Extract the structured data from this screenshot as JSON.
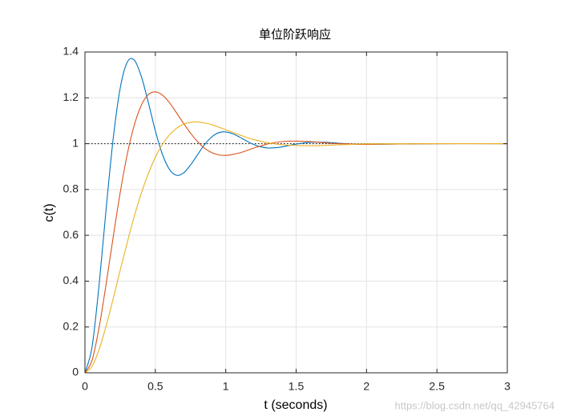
{
  "chart_data": {
    "type": "line",
    "title": "单位阶跃响应",
    "x_label": "t (seconds)",
    "y_label": "c(t)",
    "x": [
      0,
      0.05,
      0.1,
      0.15,
      0.2,
      0.25,
      0.3,
      0.35,
      0.4,
      0.45,
      0.5,
      0.55,
      0.6,
      0.65,
      0.7,
      0.75,
      0.8,
      0.85,
      0.9,
      0.95,
      1.0,
      1.05,
      1.1,
      1.15,
      1.2,
      1.25,
      1.3,
      1.35,
      1.4,
      1.45,
      1.5,
      1.6,
      1.7,
      1.8,
      1.9,
      2.0,
      2.5,
      3.0
    ],
    "series": [
      {
        "color": "#0072bd",
        "values": [
          0,
          0.111,
          0.381,
          0.712,
          1.019,
          1.241,
          1.355,
          1.365,
          1.294,
          1.18,
          1.056,
          0.954,
          0.888,
          0.862,
          0.872,
          0.907,
          0.952,
          0.996,
          1.029,
          1.048,
          1.051,
          1.043,
          1.028,
          1.011,
          0.996,
          0.986,
          0.981,
          0.982,
          0.986,
          0.992,
          0.998,
          1.006,
          1.006,
          1.002,
          0.998,
          0.997,
          1.0,
          1.0
        ]
      },
      {
        "color": "#d95319",
        "values": [
          0,
          0.054,
          0.196,
          0.386,
          0.59,
          0.785,
          0.952,
          1.08,
          1.167,
          1.214,
          1.226,
          1.212,
          1.179,
          1.135,
          1.089,
          1.046,
          1.009,
          0.98,
          0.961,
          0.951,
          0.949,
          0.953,
          0.96,
          0.97,
          0.981,
          0.99,
          0.999,
          1.005,
          1.009,
          1.011,
          1.011,
          1.009,
          1.004,
          1.0,
          0.998,
          0.997,
          1.0,
          1.0
        ]
      },
      {
        "color": "#edb120",
        "values": [
          0,
          0.028,
          0.101,
          0.204,
          0.322,
          0.447,
          0.568,
          0.682,
          0.783,
          0.869,
          0.941,
          0.997,
          1.038,
          1.067,
          1.085,
          1.093,
          1.095,
          1.09,
          1.083,
          1.072,
          1.061,
          1.049,
          1.038,
          1.027,
          1.018,
          1.01,
          1.004,
          0.999,
          0.995,
          0.993,
          0.992,
          0.991,
          0.992,
          0.995,
          0.997,
          0.999,
          1.0,
          1.0
        ]
      }
    ],
    "reference_line": 1,
    "xlim": [
      0,
      3
    ],
    "xticks": [
      0,
      0.5,
      1,
      1.5,
      2,
      2.5,
      3
    ],
    "ylim": [
      0,
      1.4
    ],
    "yticks": [
      0,
      0.2,
      0.4,
      0.6,
      0.8,
      1,
      1.2,
      1.4
    ],
    "grid": true,
    "watermark": "https://blog.csdn.net/qq_42945764"
  }
}
